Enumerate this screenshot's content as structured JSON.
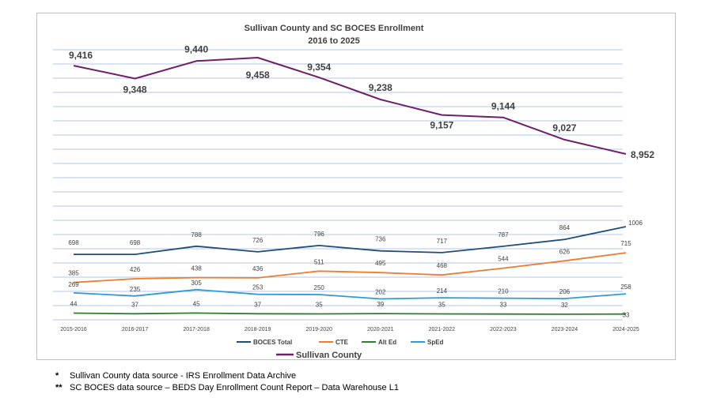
{
  "chart_data": {
    "type": "line",
    "title": "Sullivan County and SC BOCES Enrollment",
    "subtitle": "2016 to 2025",
    "categories": [
      "2015-2016",
      "2016-2017",
      "2017-2018",
      "2018-2019",
      "2019-2020",
      "2020-2021",
      "2021-2022",
      "2022-2023",
      "2023-2024",
      "2024-2025"
    ],
    "value_labels": {
      "sullivan": [
        "9,416",
        "9,348",
        "9,440",
        "9,458",
        "9,354",
        "9,238",
        "9,157",
        "9,144",
        "9,027",
        "8,952"
      ]
    },
    "series": [
      {
        "key": "sullivan",
        "name": "Sullivan County",
        "color": "#6e1f68",
        "values": [
          9416,
          9348,
          9440,
          9458,
          9354,
          9238,
          9157,
          9144,
          9027,
          8952
        ]
      },
      {
        "key": "boces",
        "name": "BOCES Total",
        "color": "#1f4e79",
        "values": [
          698,
          698,
          788,
          726,
          796,
          736,
          717,
          787,
          864,
          1006
        ]
      },
      {
        "key": "cte",
        "name": "CTE",
        "color": "#ed7d31",
        "values": [
          385,
          426,
          438,
          436,
          511,
          495,
          468,
          544,
          626,
          715
        ]
      },
      {
        "key": "alted",
        "name": "Alt Ed",
        "color": "#2e7d32",
        "values": [
          44,
          37,
          45,
          37,
          35,
          39,
          35,
          33,
          32,
          33
        ]
      },
      {
        "key": "sped",
        "name": "SpEd",
        "color": "#2e9bd6",
        "values": [
          269,
          235,
          305,
          253,
          250,
          202,
          214,
          210,
          206,
          258
        ]
      }
    ],
    "grid": true,
    "legend_position": "bottom"
  },
  "footnotes": [
    {
      "mark": "*",
      "text": "Sullivan County data source - IRS Enrollment Data Archive"
    },
    {
      "mark": "**",
      "text": "SC BOCES data source – BEDS Day Enrollment Count Report – Data Warehouse L1"
    }
  ]
}
